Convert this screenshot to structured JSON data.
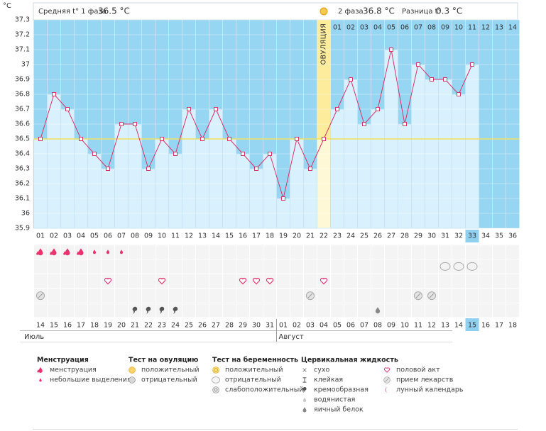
{
  "header": {
    "phase1_label": "Средняя t° 1 фаза",
    "phase1_value": "36.5 °C",
    "phase2_label": "2 фаза",
    "phase2_value": "36.8 °C",
    "diff_label": "Разница t°",
    "diff_value": "0.3 °C"
  },
  "chart_data": {
    "type": "bbt",
    "y_label": "°C",
    "ylim": [
      35.9,
      37.3
    ],
    "yticks": [
      35.9,
      36,
      36.1,
      36.2,
      36.3,
      36.4,
      36.5,
      36.6,
      36.7,
      36.8,
      36.9,
      37,
      37.1,
      37.2,
      37.3
    ],
    "categories": [
      "01",
      "02",
      "03",
      "04",
      "05",
      "06",
      "07",
      "08",
      "09",
      "10",
      "11",
      "12",
      "13",
      "14",
      "15",
      "16",
      "17",
      "18",
      "19",
      "20",
      "21",
      "22",
      "23",
      "24",
      "25",
      "26",
      "27",
      "28",
      "29",
      "30",
      "31",
      "32",
      "33",
      "34",
      "35",
      "36"
    ],
    "values": [
      36.5,
      36.8,
      36.7,
      36.5,
      36.4,
      36.3,
      36.6,
      36.6,
      36.3,
      36.5,
      36.4,
      36.7,
      36.5,
      36.7,
      36.5,
      36.4,
      36.3,
      36.4,
      36.1,
      36.5,
      36.3,
      36.5,
      36.7,
      36.9,
      36.6,
      36.7,
      37.1,
      36.6,
      37.0,
      36.9,
      36.9,
      36.8,
      37.0,
      null,
      null,
      null
    ],
    "line_color": "#d9336a",
    "cover_line": 36.5,
    "ovulation": {
      "label": "ОВУЛЯЦИЯ",
      "category": "22"
    },
    "phase2_days": [
      "01",
      "02",
      "03",
      "04",
      "05",
      "06",
      "07",
      "08",
      "09",
      "10",
      "11",
      "12",
      "13",
      "14"
    ],
    "current_day": "33",
    "dates": [
      "14",
      "15",
      "16",
      "17",
      "18",
      "19",
      "20",
      "21",
      "22",
      "23",
      "24",
      "25",
      "26",
      "27",
      "28",
      "29",
      "30",
      "31",
      "01",
      "02",
      "03",
      "04",
      "05",
      "06",
      "07",
      "08",
      "09",
      "10",
      "11",
      "12",
      "13",
      "14",
      "15",
      "16",
      "17",
      "18"
    ],
    "weekend": [
      true,
      false,
      false,
      false,
      false,
      false,
      true,
      true,
      false,
      false,
      false,
      false,
      false,
      true,
      true,
      false,
      false,
      false,
      false,
      false,
      true,
      true,
      false,
      false,
      false,
      false,
      false,
      true,
      true,
      false,
      false,
      false,
      false,
      false,
      true,
      true
    ],
    "today_date_index": 32,
    "months": [
      {
        "name": "Июль",
        "start_index": 0
      },
      {
        "name": "Август",
        "start_index": 18
      }
    ],
    "symbol_rows": [
      [
        {
          "icon": "menstruation",
          "days": [
            "01",
            "02",
            "03",
            "04"
          ]
        },
        {
          "icon": "spotting",
          "days": [
            "05",
            "06",
            "07"
          ]
        }
      ],
      [
        {
          "icon": "preg-negative",
          "days": [
            "31",
            "32",
            "33"
          ]
        }
      ],
      [
        {
          "icon": "heart",
          "days": [
            "06",
            "10",
            "16",
            "17",
            "18",
            "22"
          ]
        }
      ],
      [
        {
          "icon": "pill",
          "days": [
            "01",
            "21",
            "29",
            "30"
          ]
        }
      ],
      [
        {
          "icon": "creamy",
          "days": [
            "08",
            "09",
            "10",
            "11"
          ]
        },
        {
          "icon": "eggwhite",
          "days": [
            "26"
          ]
        }
      ]
    ]
  },
  "legend": [
    {
      "title": "Менструация",
      "items": [
        {
          "icon": "menstruation",
          "label": "менструация"
        },
        {
          "icon": "spotting",
          "label": "небольшие выделения"
        }
      ]
    },
    {
      "title": "Тест на овуляцию",
      "items": [
        {
          "icon": "ov-positive",
          "label": "положительный"
        },
        {
          "icon": "ov-negative",
          "label": "отрицательный"
        }
      ]
    },
    {
      "title": "Тест на беременность",
      "items": [
        {
          "icon": "preg-positive",
          "label": "положительный"
        },
        {
          "icon": "preg-negative",
          "label": "отрицательный"
        },
        {
          "icon": "preg-weak",
          "label": "слабоположительный"
        }
      ]
    },
    {
      "title": "Цервикальная жидкость",
      "items": [
        {
          "icon": "dry",
          "label": "сухо"
        },
        {
          "icon": "sticky",
          "label": "клейкая"
        },
        {
          "icon": "creamy",
          "label": "кремообразная"
        },
        {
          "icon": "watery",
          "label": "водянистая"
        },
        {
          "icon": "eggwhite",
          "label": "яичный белок"
        }
      ]
    },
    {
      "title": "",
      "items": [
        {
          "icon": "heart",
          "label": "половой акт"
        },
        {
          "icon": "pill",
          "label": "прием лекарств"
        },
        {
          "icon": "moon",
          "label": "лунный календарь"
        }
      ]
    }
  ]
}
